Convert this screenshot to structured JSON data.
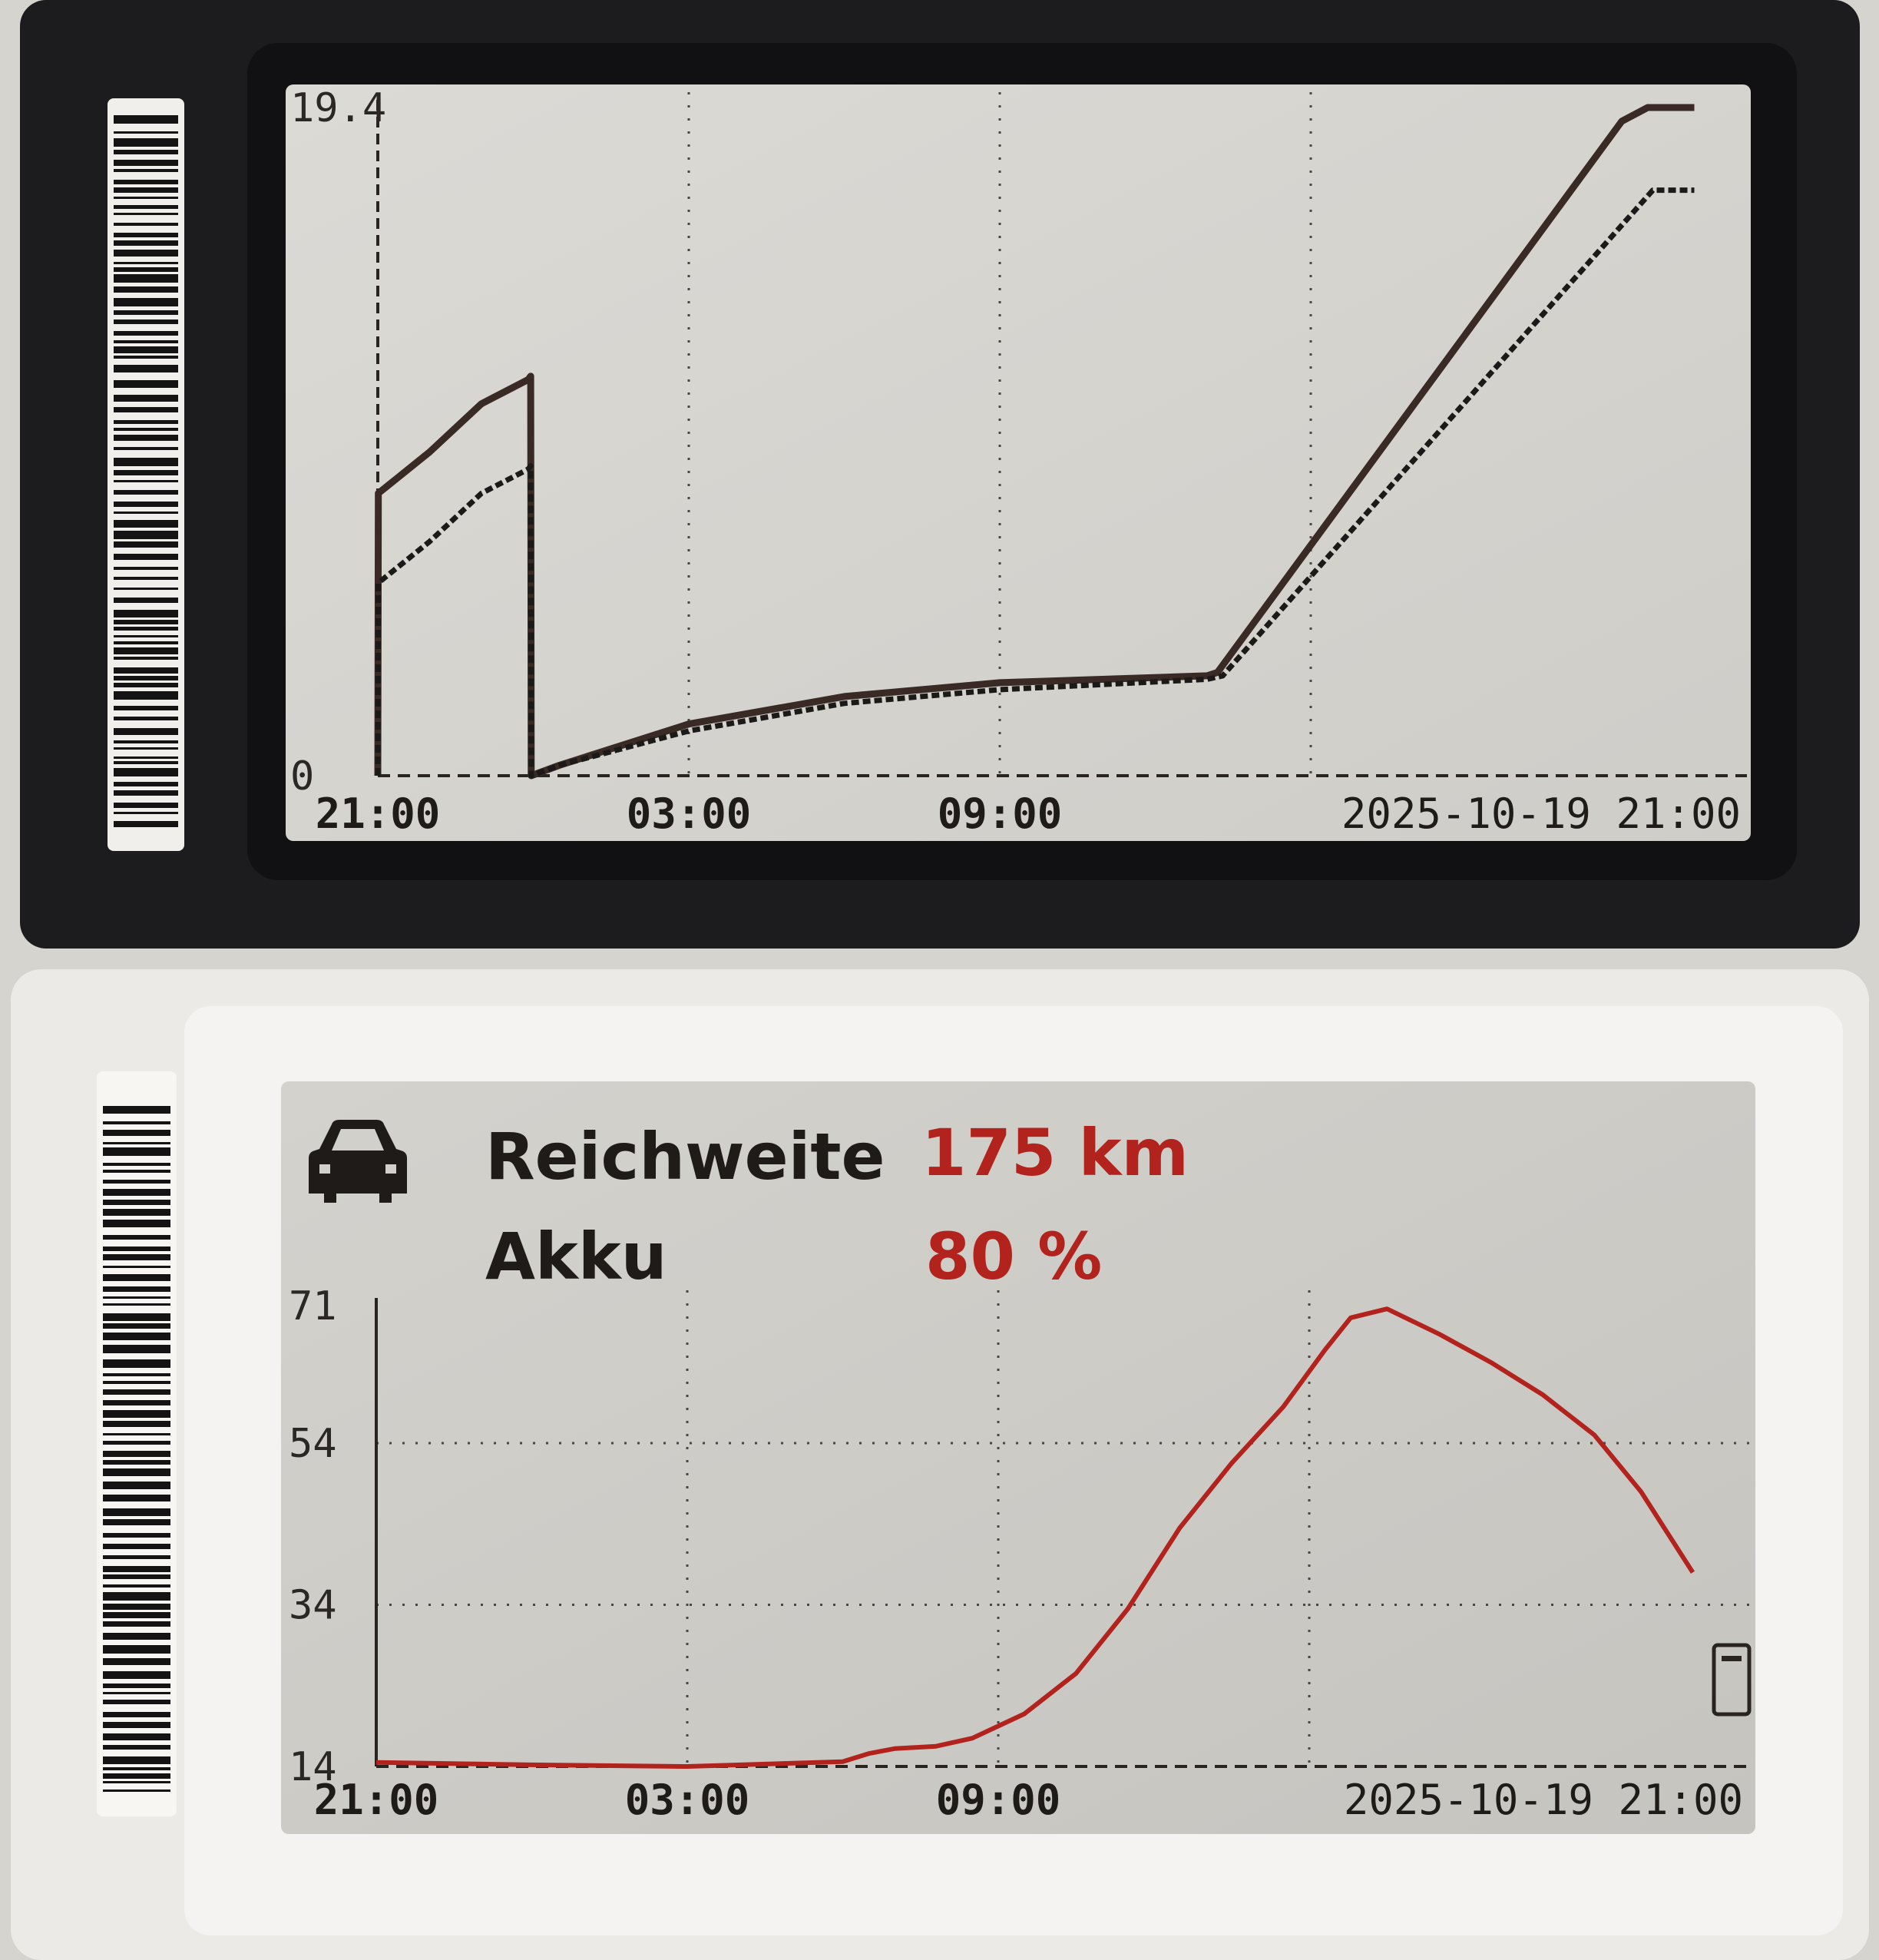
{
  "devices": [
    {
      "name": "top-epaper-tag",
      "chart_data": {
        "type": "line",
        "y_tick_labels": [
          "19.4",
          "0"
        ],
        "ylim": [
          0,
          19.4
        ],
        "x_tick_labels": [
          "21:00",
          "03:00",
          "09:00",
          "2025-10-19 21:00"
        ],
        "grid": true,
        "series": [
          {
            "style": "thick",
            "x": [
              0,
              0.01,
              1,
              2,
              2.9,
              2.95,
              2.96,
              3.5,
              6,
              9,
              12,
              16,
              16.2,
              24,
              24.5,
              25.4
            ],
            "values": [
              0,
              8.2,
              9.4,
              10.8,
              11.5,
              11.6,
              0,
              0.3,
              1.5,
              2.3,
              2.7,
              2.9,
              3.0,
              19.0,
              19.4,
              19.4
            ]
          },
          {
            "style": "dashed",
            "x": [
              0,
              0.01,
              1,
              2,
              2.9,
              2.95,
              2.96,
              3.5,
              6,
              9,
              12,
              16,
              16.3,
              24.6,
              25.4
            ],
            "values": [
              0,
              5.6,
              6.8,
              8.2,
              8.9,
              9.0,
              0,
              0.3,
              1.3,
              2.1,
              2.5,
              2.8,
              2.9,
              17.0,
              17.0
            ]
          }
        ]
      }
    },
    {
      "name": "bottom-epaper-tag",
      "header": {
        "range_label": "Reichweite",
        "range_value": "175 km",
        "battery_label": "Akku",
        "battery_value": "80 %"
      },
      "chart_data": {
        "type": "line",
        "y_tick_labels": [
          "71",
          "54",
          "34",
          "14"
        ],
        "ylim": [
          14,
          71
        ],
        "x_tick_labels": [
          "21:00",
          "03:00",
          "09:00",
          "2025-10-19 21:00"
        ],
        "grid": true,
        "series": [
          {
            "style": "red",
            "x": [
              0,
              3,
              6,
              9,
              9.5,
              10,
              10.8,
              11.5,
              12.5,
              13.5,
              14.5,
              15.5,
              16.5,
              17.5,
              18.3,
              18.8,
              19.5,
              20.5,
              21.5,
              22.5,
              23.5,
              24.4,
              25.0,
              25.4
            ],
            "values": [
              14.5,
              14.2,
              14.0,
              14.6,
              15.6,
              16.2,
              16.5,
              17.5,
              20.5,
              25.5,
              33.5,
              43.5,
              51.5,
              58.5,
              65.5,
              69.5,
              70.6,
              67.5,
              64.0,
              60.0,
              55.0,
              48.0,
              42.0,
              38.0
            ]
          }
        ]
      }
    }
  ],
  "colors": {
    "ink": "#2a2420",
    "red": "#b3231d",
    "paper": "#d1cfca",
    "bezel_dark": "#1d1d1f",
    "bezel_light": "#ecebe8"
  },
  "icons": [
    "car-icon",
    "battery-icon"
  ]
}
